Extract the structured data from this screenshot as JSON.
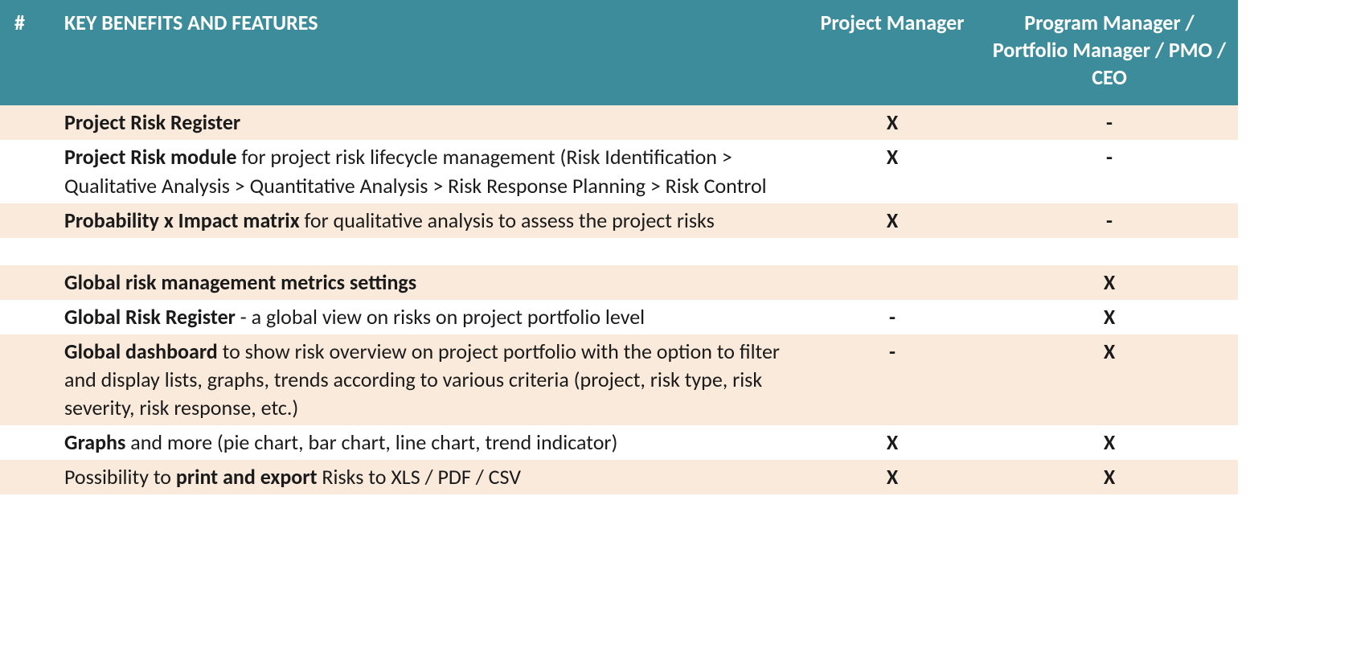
{
  "table": {
    "header_bg": "#3c8c9b",
    "header_fg": "#ffffff",
    "stripe_bg": "#faeadb",
    "font_family": "Calibri",
    "font_size_pt": 20,
    "columns": {
      "num": "#",
      "features": "KEY BENEFITS AND FEATURES",
      "pm": "Project Manager",
      "pgm": "Program Manager / Portfolio Manager / PMO /  CEO"
    },
    "rows": [
      {
        "stripe": true,
        "feature_bold": "Project Risk Register",
        "feature_rest": "",
        "pm": "X",
        "pgm": "-"
      },
      {
        "stripe": false,
        "feature_bold": "Project Risk module",
        "feature_rest": " for project risk lifecycle management (Risk Identification > Qualitative Analysis > Quantitative Analysis > Risk Response Planning > Risk Control",
        "pm": "X",
        "pgm": "-"
      },
      {
        "stripe": true,
        "feature_bold": "Probability x Impact matrix",
        "feature_rest": " for qualitative analysis to assess the project risks",
        "pm": "X",
        "pgm": "-"
      },
      {
        "stripe": false,
        "blank": true
      },
      {
        "stripe": true,
        "feature_bold": "Global risk management metrics settings",
        "feature_rest": "",
        "pm": "",
        "pgm": "X"
      },
      {
        "stripe": false,
        "feature_bold": "Global Risk Register",
        "feature_rest": " - a global view on risks on project portfolio level",
        "pm": "-",
        "pgm": "X"
      },
      {
        "stripe": true,
        "feature_bold": "Global dashboard",
        "feature_rest": " to show risk overview on project portfolio with the option to filter and display lists, graphs, trends according to various criteria (project, risk type, risk severity, risk response, etc.)",
        "pm": "-",
        "pgm": "X"
      },
      {
        "stripe": false,
        "feature_bold": "Graphs",
        "feature_rest": " and more (pie chart, bar chart, line chart, trend indicator)",
        "pm": "X",
        "pgm": "X"
      },
      {
        "stripe": true,
        "feature_pre": "Possibility to ",
        "feature_bold": "print and export",
        "feature_rest": " Risks to XLS / PDF / CSV",
        "pm": "X",
        "pgm": "X"
      }
    ]
  }
}
